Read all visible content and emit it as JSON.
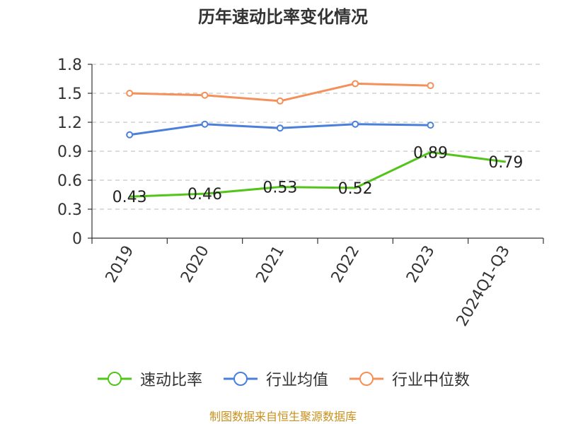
{
  "chart_data": {
    "type": "line",
    "title": "历年速动比率变化情况",
    "categories": [
      "2019",
      "2020",
      "2021",
      "2022",
      "2023",
      "2024Q1-Q3"
    ],
    "ylim": [
      0,
      1.8
    ],
    "yticks": [
      "0",
      "0.3",
      "0.6",
      "0.9",
      "1.2",
      "1.5",
      "1.8"
    ],
    "grid": true,
    "legend_position": "bottom",
    "series": [
      {
        "name": "速动比率",
        "color": "#52c41a",
        "values": [
          0.43,
          0.46,
          0.53,
          0.52,
          0.89,
          0.79
        ],
        "labels": [
          "0.43",
          "0.46",
          "0.53",
          "0.52",
          "0.89",
          "0.79"
        ]
      },
      {
        "name": "行业均值",
        "color": "#4a7fdb",
        "values": [
          1.07,
          1.18,
          1.14,
          1.18,
          1.17,
          null
        ]
      },
      {
        "name": "行业中位数",
        "color": "#f4905a",
        "values": [
          1.5,
          1.48,
          1.42,
          1.6,
          1.58,
          null
        ]
      }
    ]
  },
  "source": "制图数据来自恒生聚源数据库"
}
